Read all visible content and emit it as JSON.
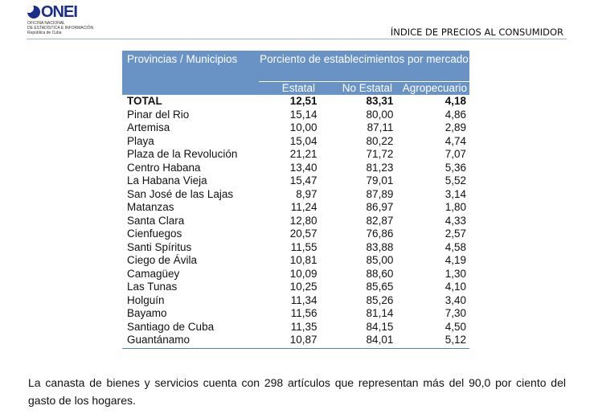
{
  "header": {
    "logo": {
      "brand": "ONEI",
      "lines": [
        "OFICINA NACIONAL",
        "DE ESTADÍSTICA E INFORMACIÓN",
        "República de Cuba"
      ]
    },
    "title": "ÍNDICE DE PRECIOS AL CONSUMIDOR"
  },
  "table": {
    "col_name_header": "Provincias / Municipios",
    "group_header": "Porciento de establecimientos por mercado",
    "columns": [
      "Estatal",
      "No Estatal",
      "Agropecuario"
    ],
    "rows": [
      {
        "name": "TOTAL",
        "values": [
          "12,51",
          "83,31",
          "4,18"
        ]
      },
      {
        "name": "Pinar del Rio",
        "values": [
          "15,14",
          "80,00",
          "4,86"
        ]
      },
      {
        "name": "Artemisa",
        "values": [
          "10,00",
          "87,11",
          "2,89"
        ]
      },
      {
        "name": "Playa",
        "values": [
          "15,04",
          "80,22",
          "4,74"
        ]
      },
      {
        "name": "Plaza de la Revolución",
        "values": [
          "21,21",
          "71,72",
          "7,07"
        ]
      },
      {
        "name": "Centro Habana",
        "values": [
          "13,40",
          "81,23",
          "5,36"
        ]
      },
      {
        "name": "La Habana Vieja",
        "values": [
          "15,47",
          "79,01",
          "5,52"
        ]
      },
      {
        "name": "San José de las Lajas",
        "values": [
          "8,97",
          "87,89",
          "3,14"
        ]
      },
      {
        "name": "Matanzas",
        "values": [
          "11,24",
          "86,97",
          "1,80"
        ]
      },
      {
        "name": "Santa Clara",
        "values": [
          "12,80",
          "82,87",
          "4,33"
        ]
      },
      {
        "name": "Cienfuegos",
        "values": [
          "20,57",
          "76,86",
          "2,57"
        ]
      },
      {
        "name": "Santi Spíritus",
        "values": [
          "11,55",
          "83,88",
          "4,58"
        ]
      },
      {
        "name": "Ciego de Ávila",
        "values": [
          "10,81",
          "85,00",
          "4,19"
        ]
      },
      {
        "name": "Camagüey",
        "values": [
          "10,09",
          "88,60",
          "1,30"
        ]
      },
      {
        "name": "Las Tunas",
        "values": [
          "10,25",
          "85,65",
          "4,10"
        ]
      },
      {
        "name": "Holguín",
        "values": [
          "11,34",
          "85,26",
          "3,40"
        ]
      },
      {
        "name": "Bayamo",
        "values": [
          "11,56",
          "81,14",
          "7,30"
        ]
      },
      {
        "name": "Santiago de Cuba",
        "values": [
          "11,35",
          "84,15",
          "4,50"
        ]
      },
      {
        "name": "Guantánamo",
        "values": [
          "10,87",
          "84,01",
          "5,12"
        ]
      }
    ]
  },
  "paragraph": "La canasta de bienes y servicios cuenta con 298 artículos que representan más del 90,0 por ciento del gasto de los hogares.",
  "colors": {
    "header_bg": "#6a93c5",
    "rule": "#9ab0d8",
    "logo": "#1a2e8a"
  }
}
